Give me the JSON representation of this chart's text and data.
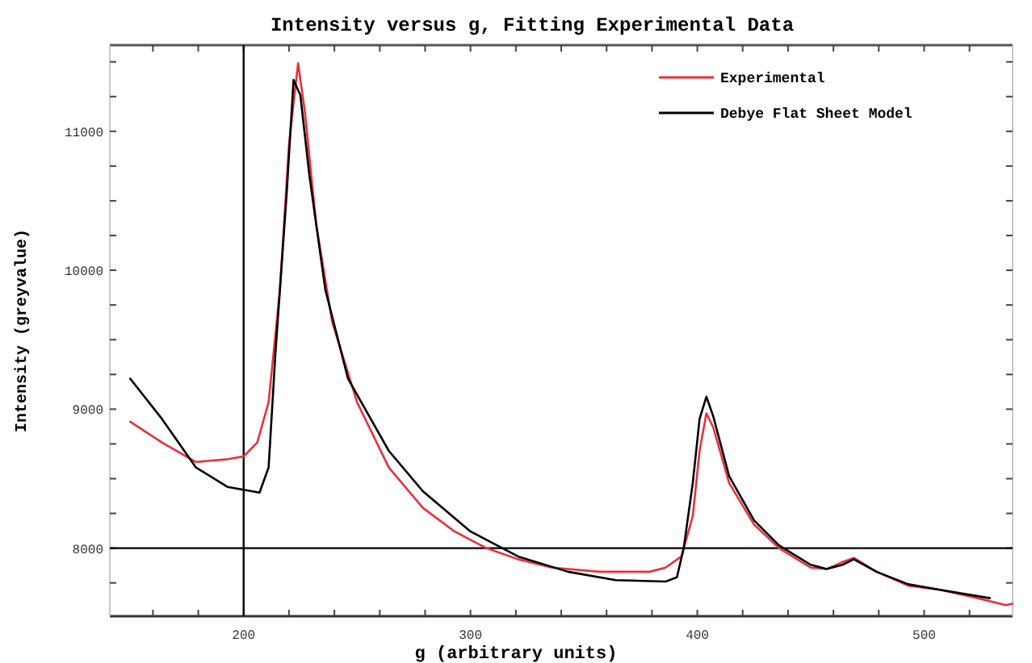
{
  "chart_data": {
    "type": "line",
    "title": "Intensity versus g, Fitting Experimental Data",
    "xlabel": "g (arbitrary units)",
    "ylabel": "Intensity (greyvalue)",
    "xlim": [
      141,
      539
    ],
    "ylim": [
      7510,
      11620
    ],
    "xticks": [
      {
        "value": 160,
        "label": null
      },
      {
        "value": 180,
        "label": null
      },
      200,
      {
        "value": 220,
        "label": null
      },
      {
        "value": 240,
        "label": null
      },
      {
        "value": 260,
        "label": null
      },
      {
        "value": 280,
        "label": null
      },
      300,
      {
        "value": 320,
        "label": null
      },
      {
        "value": 340,
        "label": null
      },
      {
        "value": 360,
        "label": null
      },
      {
        "value": 380,
        "label": null
      },
      400,
      {
        "value": 420,
        "label": null
      },
      {
        "value": 440,
        "label": null
      },
      {
        "value": 460,
        "label": null
      },
      {
        "value": 480,
        "label": null
      },
      500,
      {
        "value": 520,
        "label": null
      }
    ],
    "yticks": [
      {
        "value": 7750,
        "label": null
      },
      8000,
      {
        "value": 8250,
        "label": null
      },
      {
        "value": 8500,
        "label": null
      },
      {
        "value": 8750,
        "label": null
      },
      9000,
      {
        "value": 9250,
        "label": null
      },
      {
        "value": 9500,
        "label": null
      },
      {
        "value": 9750,
        "label": null
      },
      10000,
      {
        "value": 10250,
        "label": null
      },
      {
        "value": 10500,
        "label": null
      },
      {
        "value": 10750,
        "label": null
      },
      11000,
      {
        "value": 11250,
        "label": null
      },
      {
        "value": 11500,
        "label": null
      }
    ],
    "ref_lines": [
      {
        "axis": "y",
        "value": 8000,
        "color": "#000000"
      },
      {
        "axis": "x",
        "value": 200,
        "color": "#000000"
      }
    ],
    "legend": "top right",
    "grid": false,
    "marker": "none",
    "line_style": "solid",
    "series": [
      {
        "name": "Experimental",
        "color": "#e8303a",
        "x": [
          150,
          164,
          179,
          193,
          200,
          206,
          211,
          216,
          220,
          224,
          227,
          232,
          239,
          250,
          264,
          279,
          293,
          307,
          321,
          336,
          357,
          379,
          386,
          393,
          398,
          401,
          404,
          407,
          414,
          425,
          436,
          450,
          457,
          464,
          469,
          479,
          493,
          507,
          521,
          536,
          539
        ],
        "values": [
          8910,
          8760,
          8620,
          8640,
          8660,
          8760,
          9050,
          9860,
          10910,
          11490,
          11140,
          10330,
          9630,
          9050,
          8580,
          8290,
          8120,
          8000,
          7920,
          7860,
          7830,
          7830,
          7860,
          7940,
          8230,
          8700,
          8970,
          8870,
          8470,
          8170,
          8000,
          7860,
          7850,
          7900,
          7930,
          7830,
          7730,
          7700,
          7650,
          7590,
          7600
        ]
      },
      {
        "name": "Debye Flat Sheet Model",
        "color": "#000000",
        "x": [
          150,
          164,
          179,
          193,
          200,
          207,
          211,
          214,
          219,
          222,
          225,
          229,
          236,
          246,
          264,
          279,
          300,
          321,
          343,
          364,
          386,
          391,
          394,
          398,
          401,
          404,
          407,
          414,
          425,
          436,
          450,
          457,
          464,
          469,
          479,
          493,
          507,
          529
        ],
        "values": [
          9220,
          8930,
          8580,
          8440,
          8420,
          8400,
          8580,
          9400,
          10560,
          11370,
          11260,
          10680,
          9860,
          9220,
          8700,
          8410,
          8120,
          7940,
          7830,
          7770,
          7760,
          7790,
          8000,
          8470,
          8930,
          9090,
          8950,
          8520,
          8200,
          8020,
          7880,
          7850,
          7880,
          7920,
          7830,
          7740,
          7700,
          7640
        ]
      }
    ]
  }
}
